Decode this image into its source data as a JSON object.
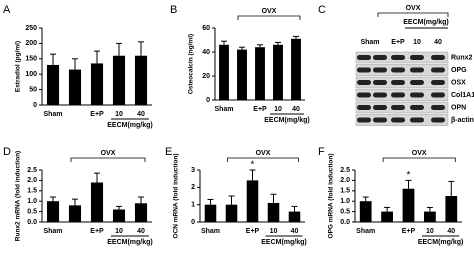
{
  "chart_data": [
    {
      "type": "bar",
      "panel": "A",
      "ylabel": "Estradiol (pg/ml)",
      "categories": [
        "Sham",
        null,
        "E+P",
        "10",
        "40"
      ],
      "group_label": "EECM(mg/kg)",
      "values": [
        130,
        115,
        135,
        160,
        160
      ],
      "errors": [
        35,
        35,
        40,
        40,
        45
      ],
      "color": "#000000",
      "ylim": [
        0,
        250
      ],
      "yticks": [
        0,
        50,
        100,
        150,
        200,
        250
      ]
    },
    {
      "type": "bar",
      "panel": "B",
      "ylabel": "Osteocalcin (ng/ml)",
      "bracket_label": "OVX",
      "categories": [
        "Sham",
        null,
        "E+P",
        "10",
        "40"
      ],
      "group_label": "EECM(mg/kg)",
      "values": [
        46,
        42,
        44,
        46,
        51
      ],
      "errors": [
        3,
        2,
        2,
        2,
        2
      ],
      "color": "#000000",
      "ylim": [
        0,
        60
      ],
      "yticks": [
        0,
        20,
        40,
        60
      ]
    },
    {
      "type": "bar",
      "panel": "D",
      "ylabel": "Runx2 mRNA (fold induction)",
      "bracket_label": "OVX",
      "categories": [
        "Sham",
        null,
        "E+P",
        "10",
        "40"
      ],
      "group_label": "EECM(mg/kg)",
      "values": [
        1.0,
        0.8,
        1.9,
        0.6,
        0.9
      ],
      "errors": [
        0.2,
        0.3,
        0.45,
        0.15,
        0.3
      ],
      "color": "#000000",
      "ylim": [
        0,
        2.5
      ],
      "yticks": [
        {
          "value": 0,
          "label": "0.0"
        },
        0.5,
        {
          "value": 1,
          "label": "1.0"
        },
        1.5,
        {
          "value": 2,
          "label": "2.0"
        },
        2.5
      ]
    },
    {
      "type": "bar",
      "panel": "E",
      "ylabel": "OCN mRNA (fold induction)",
      "bracket_label": "OVX",
      "categories": [
        "Sham",
        null,
        "E+P",
        "10",
        "40"
      ],
      "group_label": "EECM(mg/kg)",
      "values": [
        1.0,
        1.0,
        2.4,
        1.1,
        0.6
      ],
      "errors": [
        0.3,
        0.5,
        0.6,
        0.5,
        0.3
      ],
      "significance": [
        null,
        null,
        "*",
        null,
        null
      ],
      "color": "#000000",
      "ylim": [
        0,
        3
      ],
      "yticks": [
        0,
        1,
        2,
        3
      ]
    },
    {
      "type": "bar",
      "panel": "F",
      "ylabel": "OPG mRNA (fold induction)",
      "bracket_label": "OVX",
      "categories": [
        "Sham",
        null,
        "E+P",
        "10",
        "40"
      ],
      "group_label": "EECM(mg/kg)",
      "values": [
        1.0,
        0.5,
        1.6,
        0.5,
        1.25
      ],
      "errors": [
        0.2,
        0.2,
        0.4,
        0.2,
        0.7
      ],
      "significance": [
        null,
        null,
        "*",
        null,
        null
      ],
      "color": "#000000",
      "ylim": [
        0,
        2.5
      ],
      "yticks": [
        {
          "value": 0,
          "label": "0.0"
        },
        0.5,
        {
          "value": 1,
          "label": "1.0"
        },
        1.5,
        {
          "value": 2,
          "label": "2.0"
        },
        2.5
      ]
    }
  ],
  "blot": {
    "panel": "C",
    "bracket_label": "OVX",
    "group_label": "EECM(mg/kg)",
    "lanes": [
      "Sham",
      "E+P",
      "10",
      "40"
    ],
    "proteins": [
      "Runx2",
      "OPG",
      "OSX",
      "Col1A1",
      "OPN",
      "β-actin"
    ]
  }
}
